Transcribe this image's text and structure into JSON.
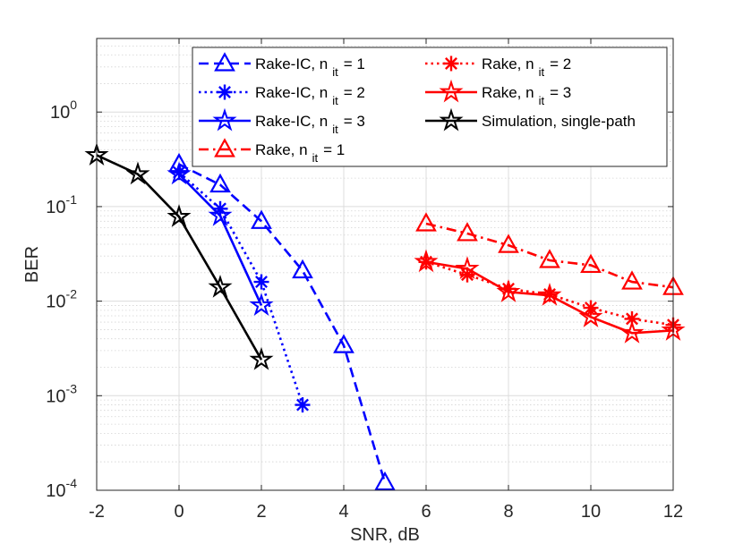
{
  "chart_data": {
    "type": "line",
    "xlabel": "SNR, dB",
    "ylabel": "BER",
    "xlim": [
      -2,
      12
    ],
    "ylim": [
      0.0001,
      6
    ],
    "yscale": "log",
    "grid": true,
    "legend_position": "top-right",
    "x_ticks": [
      {
        "value": -2,
        "label": "-2"
      },
      {
        "value": 0,
        "label": "0"
      },
      {
        "value": 2,
        "label": "2"
      },
      {
        "value": 4,
        "label": "4"
      },
      {
        "value": 6,
        "label": "6"
      },
      {
        "value": 8,
        "label": "8"
      },
      {
        "value": 10,
        "label": "10"
      },
      {
        "value": 12,
        "label": "12"
      }
    ],
    "y_ticks": [
      {
        "value": 0.0001,
        "base": "10",
        "exp": "-4"
      },
      {
        "value": 0.001,
        "base": "10",
        "exp": "-3"
      },
      {
        "value": 0.01,
        "base": "10",
        "exp": "-2"
      },
      {
        "value": 0.1,
        "base": "10",
        "exp": "-1"
      },
      {
        "value": 1,
        "base": "10",
        "exp": "0"
      }
    ],
    "series": [
      {
        "name": "Rake-IC, n it = 1",
        "label_main": "Rake-IC, n",
        "label_sub": "it",
        "label_tail": "= 1",
        "color": "#0000ff",
        "dash": "dash",
        "marker": "triangle",
        "x": [
          0,
          1,
          2,
          3,
          4,
          5
        ],
        "y": [
          0.28,
          0.17,
          0.07,
          0.021,
          0.0034,
          0.00012
        ]
      },
      {
        "name": "Rake-IC, n it = 2",
        "label_main": "Rake-IC, n",
        "label_sub": "it",
        "label_tail": "= 2",
        "color": "#0000ff",
        "dash": "dot",
        "marker": "asterisk",
        "x": [
          0,
          1,
          2,
          3
        ],
        "y": [
          0.23,
          0.095,
          0.016,
          0.0008
        ]
      },
      {
        "name": "Rake-IC, n it = 3",
        "label_main": "Rake-IC, n",
        "label_sub": "it",
        "label_tail": "= 3",
        "color": "#0000ff",
        "dash": "solid",
        "marker": "star",
        "x": [
          0,
          1,
          2
        ],
        "y": [
          0.22,
          0.08,
          0.009
        ]
      },
      {
        "name": "Rake, n it = 1",
        "label_main": "Rake, n",
        "label_sub": "it",
        "label_tail": "= 1",
        "color": "#ff0000",
        "dash": "dashdot",
        "marker": "triangle",
        "x": [
          6,
          7,
          8,
          9,
          10,
          11,
          12
        ],
        "y": [
          0.066,
          0.052,
          0.039,
          0.027,
          0.024,
          0.016,
          0.014
        ]
      },
      {
        "name": "Rake, n it = 2",
        "label_main": "Rake, n",
        "label_sub": "it",
        "label_tail": "= 2",
        "color": "#ff0000",
        "dash": "dot",
        "marker": "asterisk",
        "x": [
          6,
          7,
          8,
          9,
          10,
          11,
          12
        ],
        "y": [
          0.026,
          0.019,
          0.0135,
          0.0118,
          0.0085,
          0.0065,
          0.0056
        ]
      },
      {
        "name": "Rake, n it = 3",
        "label_main": "Rake, n",
        "label_sub": "it",
        "label_tail": "= 3",
        "color": "#ff0000",
        "dash": "solid",
        "marker": "star",
        "x": [
          6,
          7,
          8,
          9,
          10,
          11,
          12
        ],
        "y": [
          0.026,
          0.022,
          0.0125,
          0.0115,
          0.0068,
          0.0046,
          0.0049
        ]
      },
      {
        "name": "Simulation, single-path",
        "label_main": "Simulation, single-path",
        "label_sub": "",
        "label_tail": "",
        "color": "#000000",
        "dash": "solid",
        "marker": "star",
        "x": [
          -2,
          -1,
          0,
          1,
          2
        ],
        "y": [
          0.35,
          0.22,
          0.078,
          0.014,
          0.0024
        ]
      }
    ]
  }
}
